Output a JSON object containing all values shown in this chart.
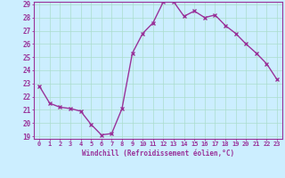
{
  "x": [
    0,
    1,
    2,
    3,
    4,
    5,
    6,
    7,
    8,
    9,
    10,
    11,
    12,
    13,
    14,
    15,
    16,
    17,
    18,
    19,
    20,
    21,
    22,
    23
  ],
  "y": [
    22.8,
    21.5,
    21.2,
    21.1,
    20.9,
    19.9,
    19.1,
    19.2,
    21.1,
    25.3,
    26.8,
    27.6,
    29.2,
    29.2,
    28.1,
    28.5,
    28.0,
    28.2,
    27.4,
    26.8,
    26.0,
    25.3,
    24.5,
    23.3
  ],
  "line_color": "#993399",
  "marker": "x",
  "marker_size": 3,
  "marker_linewidth": 1.0,
  "bg_color": "#cceeff",
  "grid_color": "#aaddcc",
  "xlabel": "Windchill (Refroidissement éolien,°C)",
  "xlabel_color": "#993399",
  "tick_color": "#993399",
  "spine_color": "#993399",
  "ylim_min": 19,
  "ylim_max": 29,
  "xlim_min": -0.5,
  "xlim_max": 23.5,
  "yticks": [
    19,
    20,
    21,
    22,
    23,
    24,
    25,
    26,
    27,
    28,
    29
  ],
  "xticks": [
    0,
    1,
    2,
    3,
    4,
    5,
    6,
    7,
    8,
    9,
    10,
    11,
    12,
    13,
    14,
    15,
    16,
    17,
    18,
    19,
    20,
    21,
    22,
    23
  ],
  "xlabel_fontsize": 5.5,
  "ytick_fontsize": 5.5,
  "xtick_fontsize": 5.0,
  "linewidth": 1.0
}
